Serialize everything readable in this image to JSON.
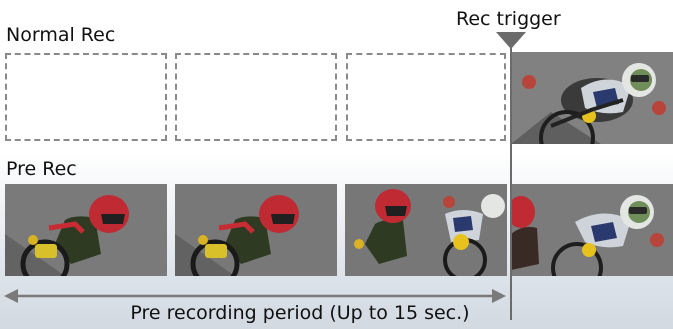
{
  "labels": {
    "normal_rec": "Normal Rec",
    "pre_rec": "Pre Rec",
    "rec_trigger": "Rec trigger",
    "pre_recording_period": "Pre recording period (Up to 15 sec.)"
  },
  "colors": {
    "dashed_frame": "#8a8a8a",
    "trigger": "#6b6b6b",
    "arrow": "#7a7a7a"
  }
}
